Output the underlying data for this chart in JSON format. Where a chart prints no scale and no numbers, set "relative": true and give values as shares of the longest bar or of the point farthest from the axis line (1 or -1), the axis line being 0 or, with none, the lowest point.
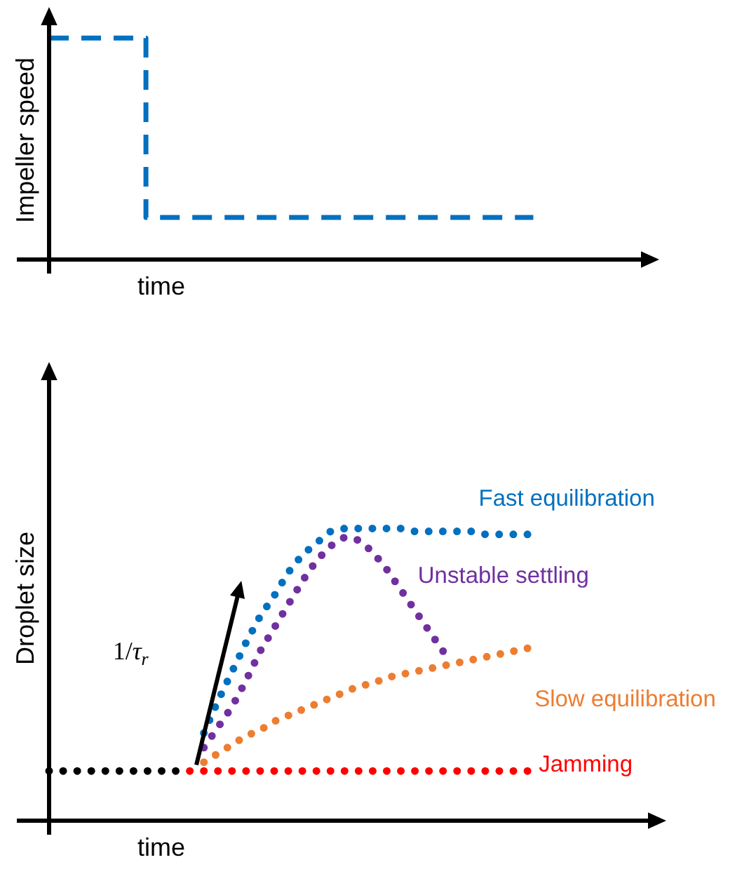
{
  "chart_data": [
    {
      "type": "step",
      "xlabel": "time",
      "ylabel": "Impeller speed",
      "relative": true,
      "legend": false,
      "tick_labels": false,
      "marker": "none",
      "categories": [
        null,
        null,
        null,
        null,
        null,
        null,
        null,
        null,
        null,
        null,
        null
      ],
      "series": [
        {
          "color": "#0070c0",
          "line_style": "dashed",
          "values": [
            1,
            1,
            1,
            0.19,
            0.19,
            0.19,
            0.19,
            0.19,
            0.19,
            0.19,
            0.19
          ]
        }
      ]
    },
    {
      "type": "line",
      "xlabel": "time",
      "ylabel": "Droplet size",
      "relative": true,
      "legend": false,
      "tick_labels": false,
      "marker": "none",
      "annotations": [
        "1/τ$_{r}$"
      ],
      "categories": [
        null,
        null,
        null,
        null,
        null,
        null,
        null,
        null,
        null,
        null,
        null,
        null,
        null,
        null,
        null,
        null,
        null,
        null,
        null,
        null,
        null,
        null,
        null,
        null,
        null,
        null,
        null,
        null,
        null,
        null,
        null,
        null,
        null,
        null,
        null
      ],
      "series": [
        {
          "color": "#000000",
          "line_style": "dotted",
          "values": [
            0.17,
            0.17,
            0.17,
            0.17,
            0.17,
            0.17,
            0.17,
            0.17,
            0.17,
            0.17,
            null,
            null,
            null,
            null,
            null,
            null,
            null,
            null,
            null,
            null,
            null,
            null,
            null,
            null,
            null,
            null,
            null,
            null,
            null,
            null,
            null,
            null,
            null,
            null,
            null
          ]
        },
        {
          "name": "Jamming",
          "color": "#ff0000",
          "line_style": "dotted",
          "values": [
            null,
            null,
            null,
            null,
            null,
            null,
            null,
            null,
            null,
            null,
            0.17,
            0.17,
            0.17,
            0.17,
            0.17,
            0.17,
            0.17,
            0.17,
            0.17,
            0.17,
            0.17,
            0.17,
            0.17,
            0.17,
            0.17,
            0.17,
            0.17,
            0.17,
            0.17,
            0.17,
            0.17,
            0.17,
            0.17,
            0.17,
            0.17
          ]
        },
        {
          "name": "Slow equilibration",
          "color": "#ed7d31",
          "line_style": "dotted",
          "values": [
            null,
            null,
            null,
            null,
            null,
            null,
            null,
            null,
            null,
            null,
            null,
            0.2,
            0.23,
            0.26,
            0.29,
            0.31,
            0.34,
            0.36,
            0.38,
            0.4,
            0.42,
            0.44,
            0.46,
            0.47,
            0.49,
            0.5,
            0.51,
            0.52,
            0.53,
            0.54,
            0.55,
            0.56,
            0.57,
            0.58,
            0.59
          ]
        },
        {
          "name": "Fast equilibration",
          "color": "#0070c0",
          "line_style": "dotted",
          "values": [
            null,
            null,
            null,
            null,
            null,
            null,
            null,
            null,
            null,
            null,
            null,
            0.3,
            0.41,
            0.51,
            0.61,
            0.7,
            0.77,
            0.85,
            0.91,
            0.95,
            0.99,
            1,
            1,
            1,
            1,
            1,
            0.99,
            0.99,
            0.99,
            0.99,
            0.99,
            0.98,
            0.98,
            0.98,
            0.98
          ]
        },
        {
          "name": "Unstable settling",
          "color": "#7030a0",
          "line_style": "dotted",
          "values": [
            null,
            null,
            null,
            null,
            null,
            null,
            null,
            null,
            null,
            null,
            null,
            0.25,
            0.32,
            0.39,
            0.48,
            0.58,
            0.66,
            0.74,
            0.82,
            0.89,
            0.94,
            0.97,
            0.96,
            0.92,
            0.86,
            0.79,
            0.72,
            0.65,
            0.58,
            null,
            null,
            null,
            null,
            null,
            null
          ]
        }
      ]
    }
  ]
}
